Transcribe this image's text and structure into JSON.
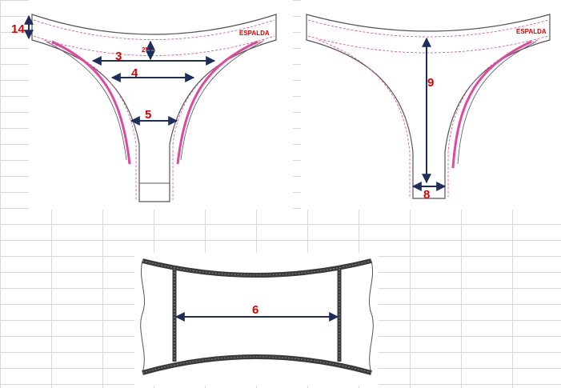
{
  "figures": {
    "front_view": {
      "waist_label": "ESPALDA",
      "measurements": [
        {
          "id": "side-height",
          "label": "14"
        },
        {
          "id": "dropdown",
          "label": "2\""
        },
        {
          "id": "width-upper",
          "label": "3"
        },
        {
          "id": "width-middle",
          "label": "4"
        },
        {
          "id": "width-lower",
          "label": "5"
        }
      ]
    },
    "back_view": {
      "waist_label": "ESPALDA",
      "measurements": [
        {
          "id": "center-length",
          "label": "9"
        },
        {
          "id": "gusset-width",
          "label": "8"
        }
      ]
    },
    "band_view": {
      "measurements": [
        {
          "id": "band-width",
          "label": "6"
        }
      ]
    }
  },
  "colors": {
    "label_red": "#e00000",
    "arrow_navy": "#1f2d5c",
    "stitch_pink": "#e0479e",
    "band_dark": "#3a3a3a",
    "outline": "#555555"
  }
}
